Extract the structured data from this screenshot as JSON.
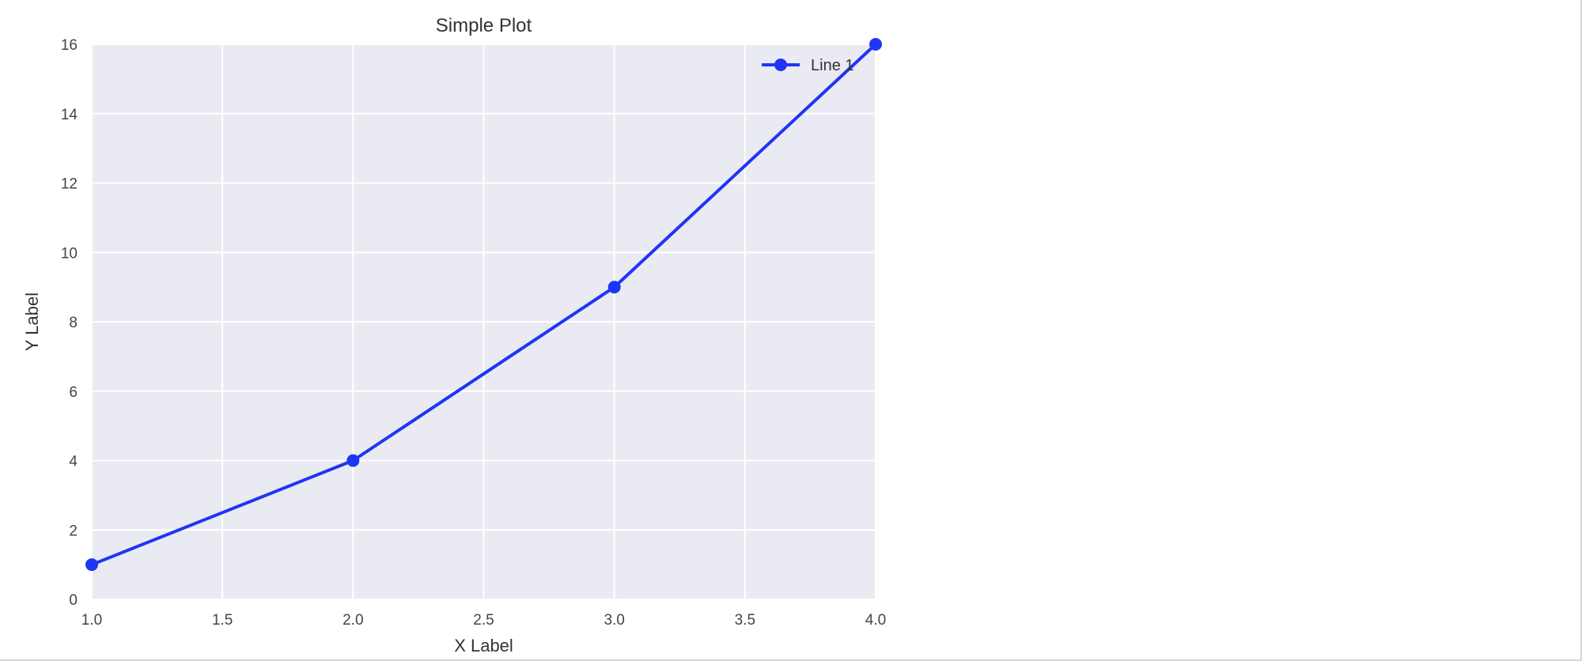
{
  "chart_data": {
    "type": "line",
    "title": "Simple Plot",
    "xlabel": "X Label",
    "ylabel": "Y Label",
    "xlim": [
      1.0,
      4.0
    ],
    "ylim": [
      0,
      16
    ],
    "xticks": [
      "1.0",
      "1.5",
      "2.0",
      "2.5",
      "3.0",
      "3.5",
      "4.0"
    ],
    "xtick_values": [
      1.0,
      1.5,
      2.0,
      2.5,
      3.0,
      3.5,
      4.0
    ],
    "yticks": [
      "0",
      "2",
      "4",
      "6",
      "8",
      "10",
      "12",
      "14",
      "16"
    ],
    "ytick_values": [
      0,
      2,
      4,
      6,
      8,
      10,
      12,
      14,
      16
    ],
    "grid": true,
    "legend_position": "top-right",
    "series": [
      {
        "name": "Line 1",
        "color": "#1f35f5",
        "marker": "circle",
        "x": [
          1,
          2,
          3,
          4
        ],
        "y": [
          1,
          4,
          9,
          16
        ]
      }
    ]
  },
  "colors": {
    "plot_background": "#eaeaf2",
    "grid": "#ffffff"
  }
}
